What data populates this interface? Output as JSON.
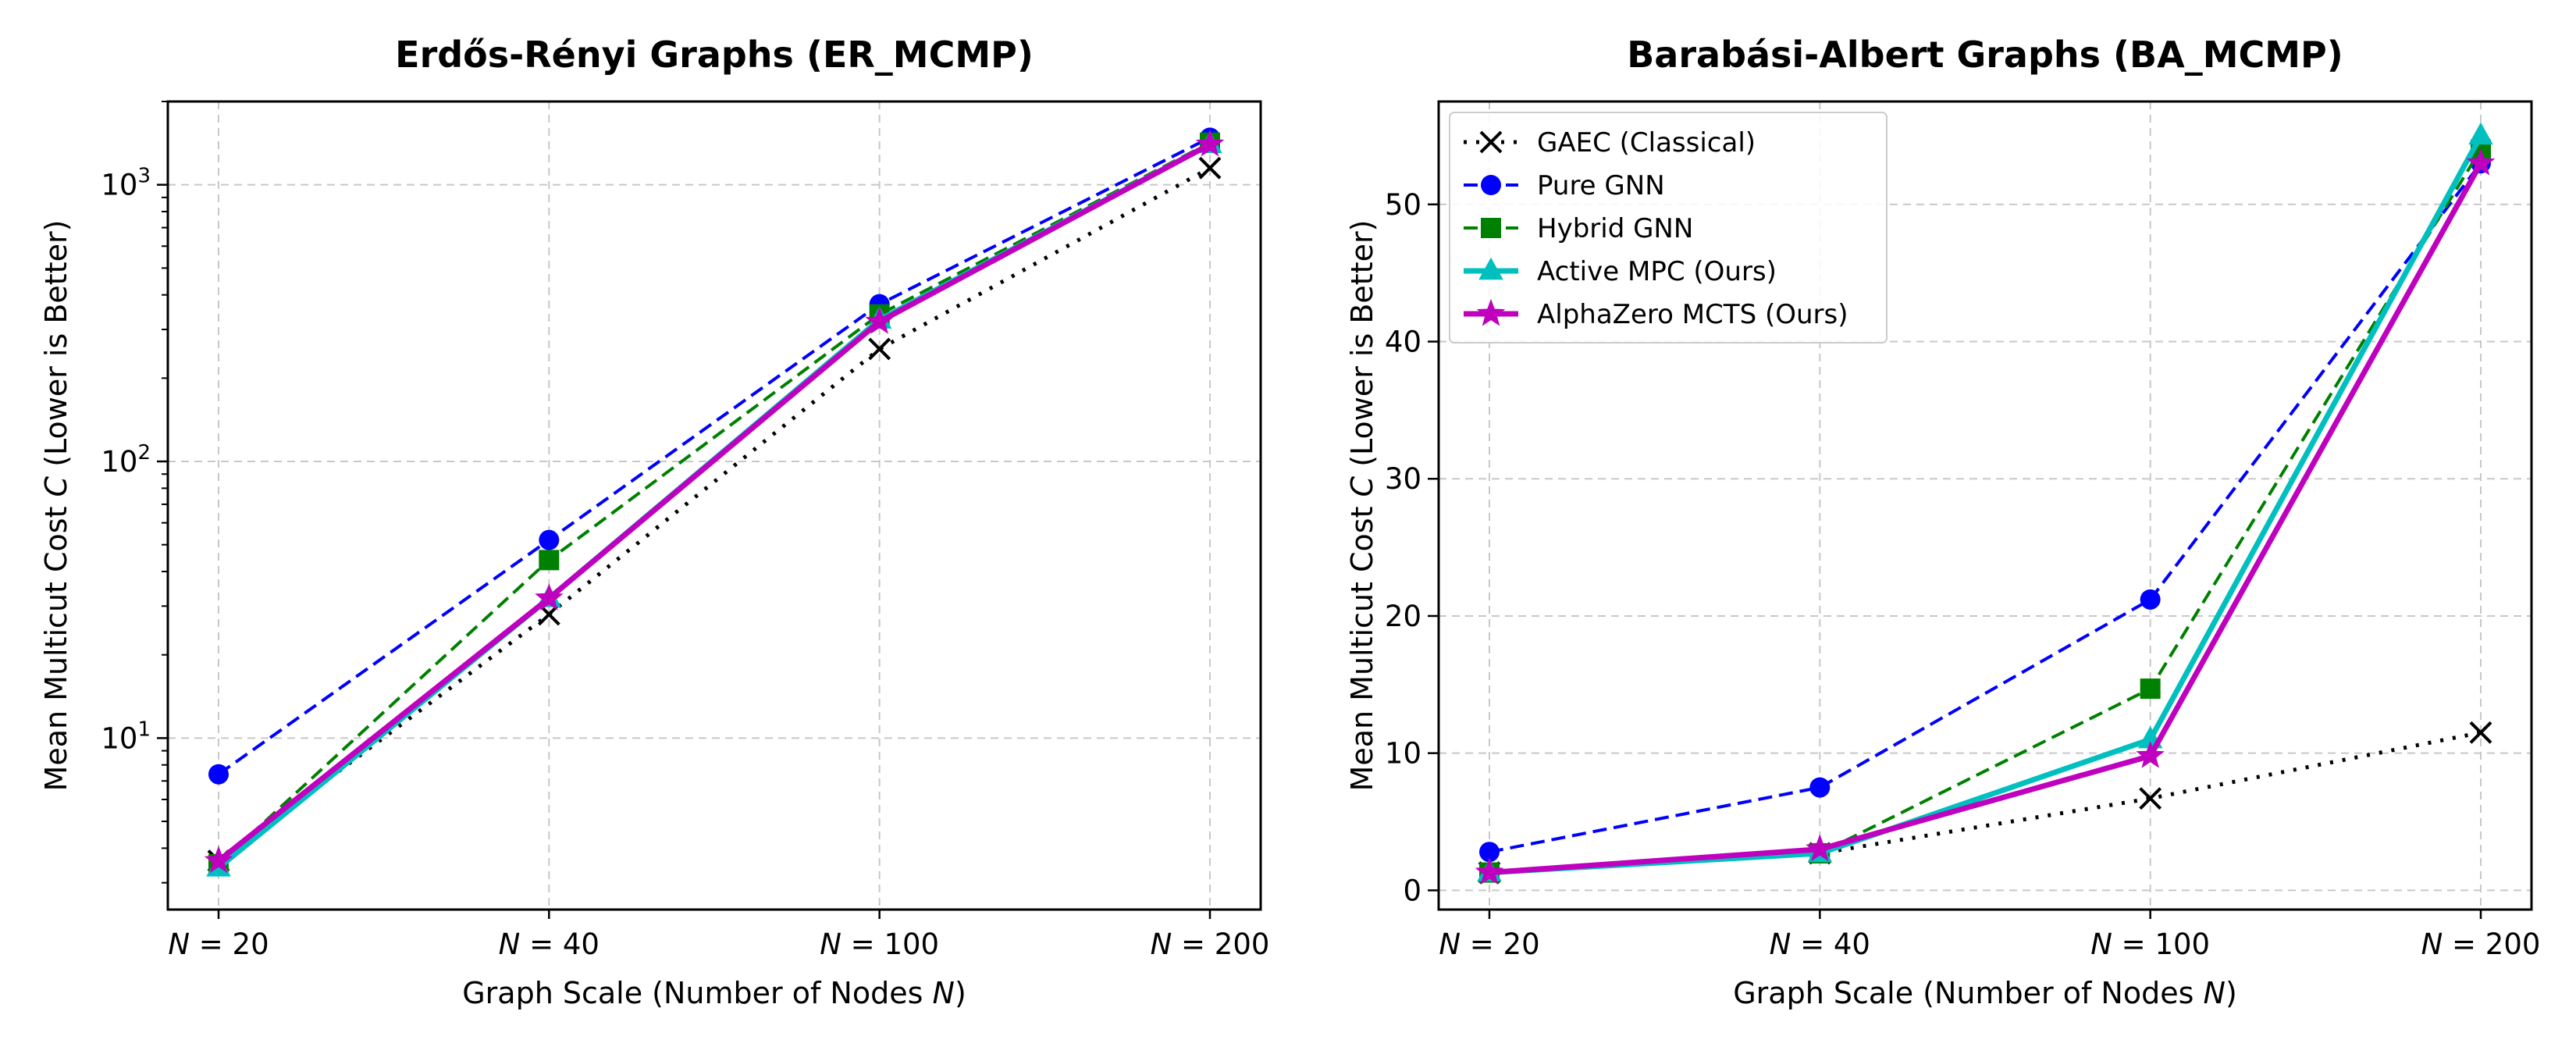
{
  "chart_data": [
    {
      "type": "line",
      "title": "Erdős-Rényi Graphs (ER_MCMP)",
      "xlabel": "Graph Scale (Number of Nodes N)",
      "ylabel": "Mean Multicut Cost C (Lower is Better)",
      "yscale": "log",
      "ylim": [
        2.4,
        2000
      ],
      "grid": true,
      "legend": "none",
      "categories": [
        "N = 20",
        "N = 40",
        "N = 100",
        "N = 200"
      ],
      "yticks": [
        {
          "value": 10,
          "label": "10^1"
        },
        {
          "value": 100,
          "label": "10^2"
        },
        {
          "value": 1000,
          "label": "10^3"
        }
      ],
      "series": [
        {
          "name": "GAEC (Classical)",
          "color": "#000000",
          "values": [
            3.6,
            28,
            255,
            1150
          ]
        },
        {
          "name": "Pure GNN",
          "color": "#0000ff",
          "values": [
            7.4,
            52,
            370,
            1480
          ]
        },
        {
          "name": "Hybrid GNN",
          "color": "#008000",
          "values": [
            3.5,
            44,
            340,
            1420
          ]
        },
        {
          "name": "Active MPC (Ours)",
          "color": "#00bfbf",
          "values": [
            3.4,
            32,
            325,
            1400
          ]
        },
        {
          "name": "AlphaZero MCTS (Ours)",
          "color": "#bf00bf",
          "values": [
            3.6,
            32,
            320,
            1400
          ]
        }
      ]
    },
    {
      "type": "line",
      "title": "Barabási-Albert Graphs (BA_MCMP)",
      "xlabel": "Graph Scale (Number of Nodes N)",
      "ylabel": "Mean Multicut Cost C (Lower is Better)",
      "yscale": "linear",
      "ylim": [
        -1.4,
        57.5
      ],
      "grid": true,
      "legend": "upper-left",
      "categories": [
        "N = 20",
        "N = 40",
        "N = 100",
        "N = 200"
      ],
      "yticks": [
        {
          "value": 0,
          "label": "0"
        },
        {
          "value": 10,
          "label": "10"
        },
        {
          "value": 20,
          "label": "20"
        },
        {
          "value": 30,
          "label": "30"
        },
        {
          "value": 40,
          "label": "40"
        },
        {
          "value": 50,
          "label": "50"
        }
      ],
      "series": [
        {
          "name": "GAEC (Classical)",
          "color": "#000000",
          "values": [
            1.3,
            2.7,
            6.7,
            11.5
          ]
        },
        {
          "name": "Pure GNN",
          "color": "#0000ff",
          "values": [
            2.8,
            7.5,
            21.2,
            53.0
          ]
        },
        {
          "name": "Hybrid GNN",
          "color": "#008000",
          "values": [
            1.3,
            2.7,
            14.7,
            54.0
          ]
        },
        {
          "name": "Active MPC (Ours)",
          "color": "#00bfbf",
          "values": [
            1.3,
            2.7,
            11.0,
            55.0
          ]
        },
        {
          "name": "AlphaZero MCTS (Ours)",
          "color": "#bf00bf",
          "values": [
            1.3,
            3.0,
            9.8,
            53.0
          ]
        }
      ]
    }
  ]
}
